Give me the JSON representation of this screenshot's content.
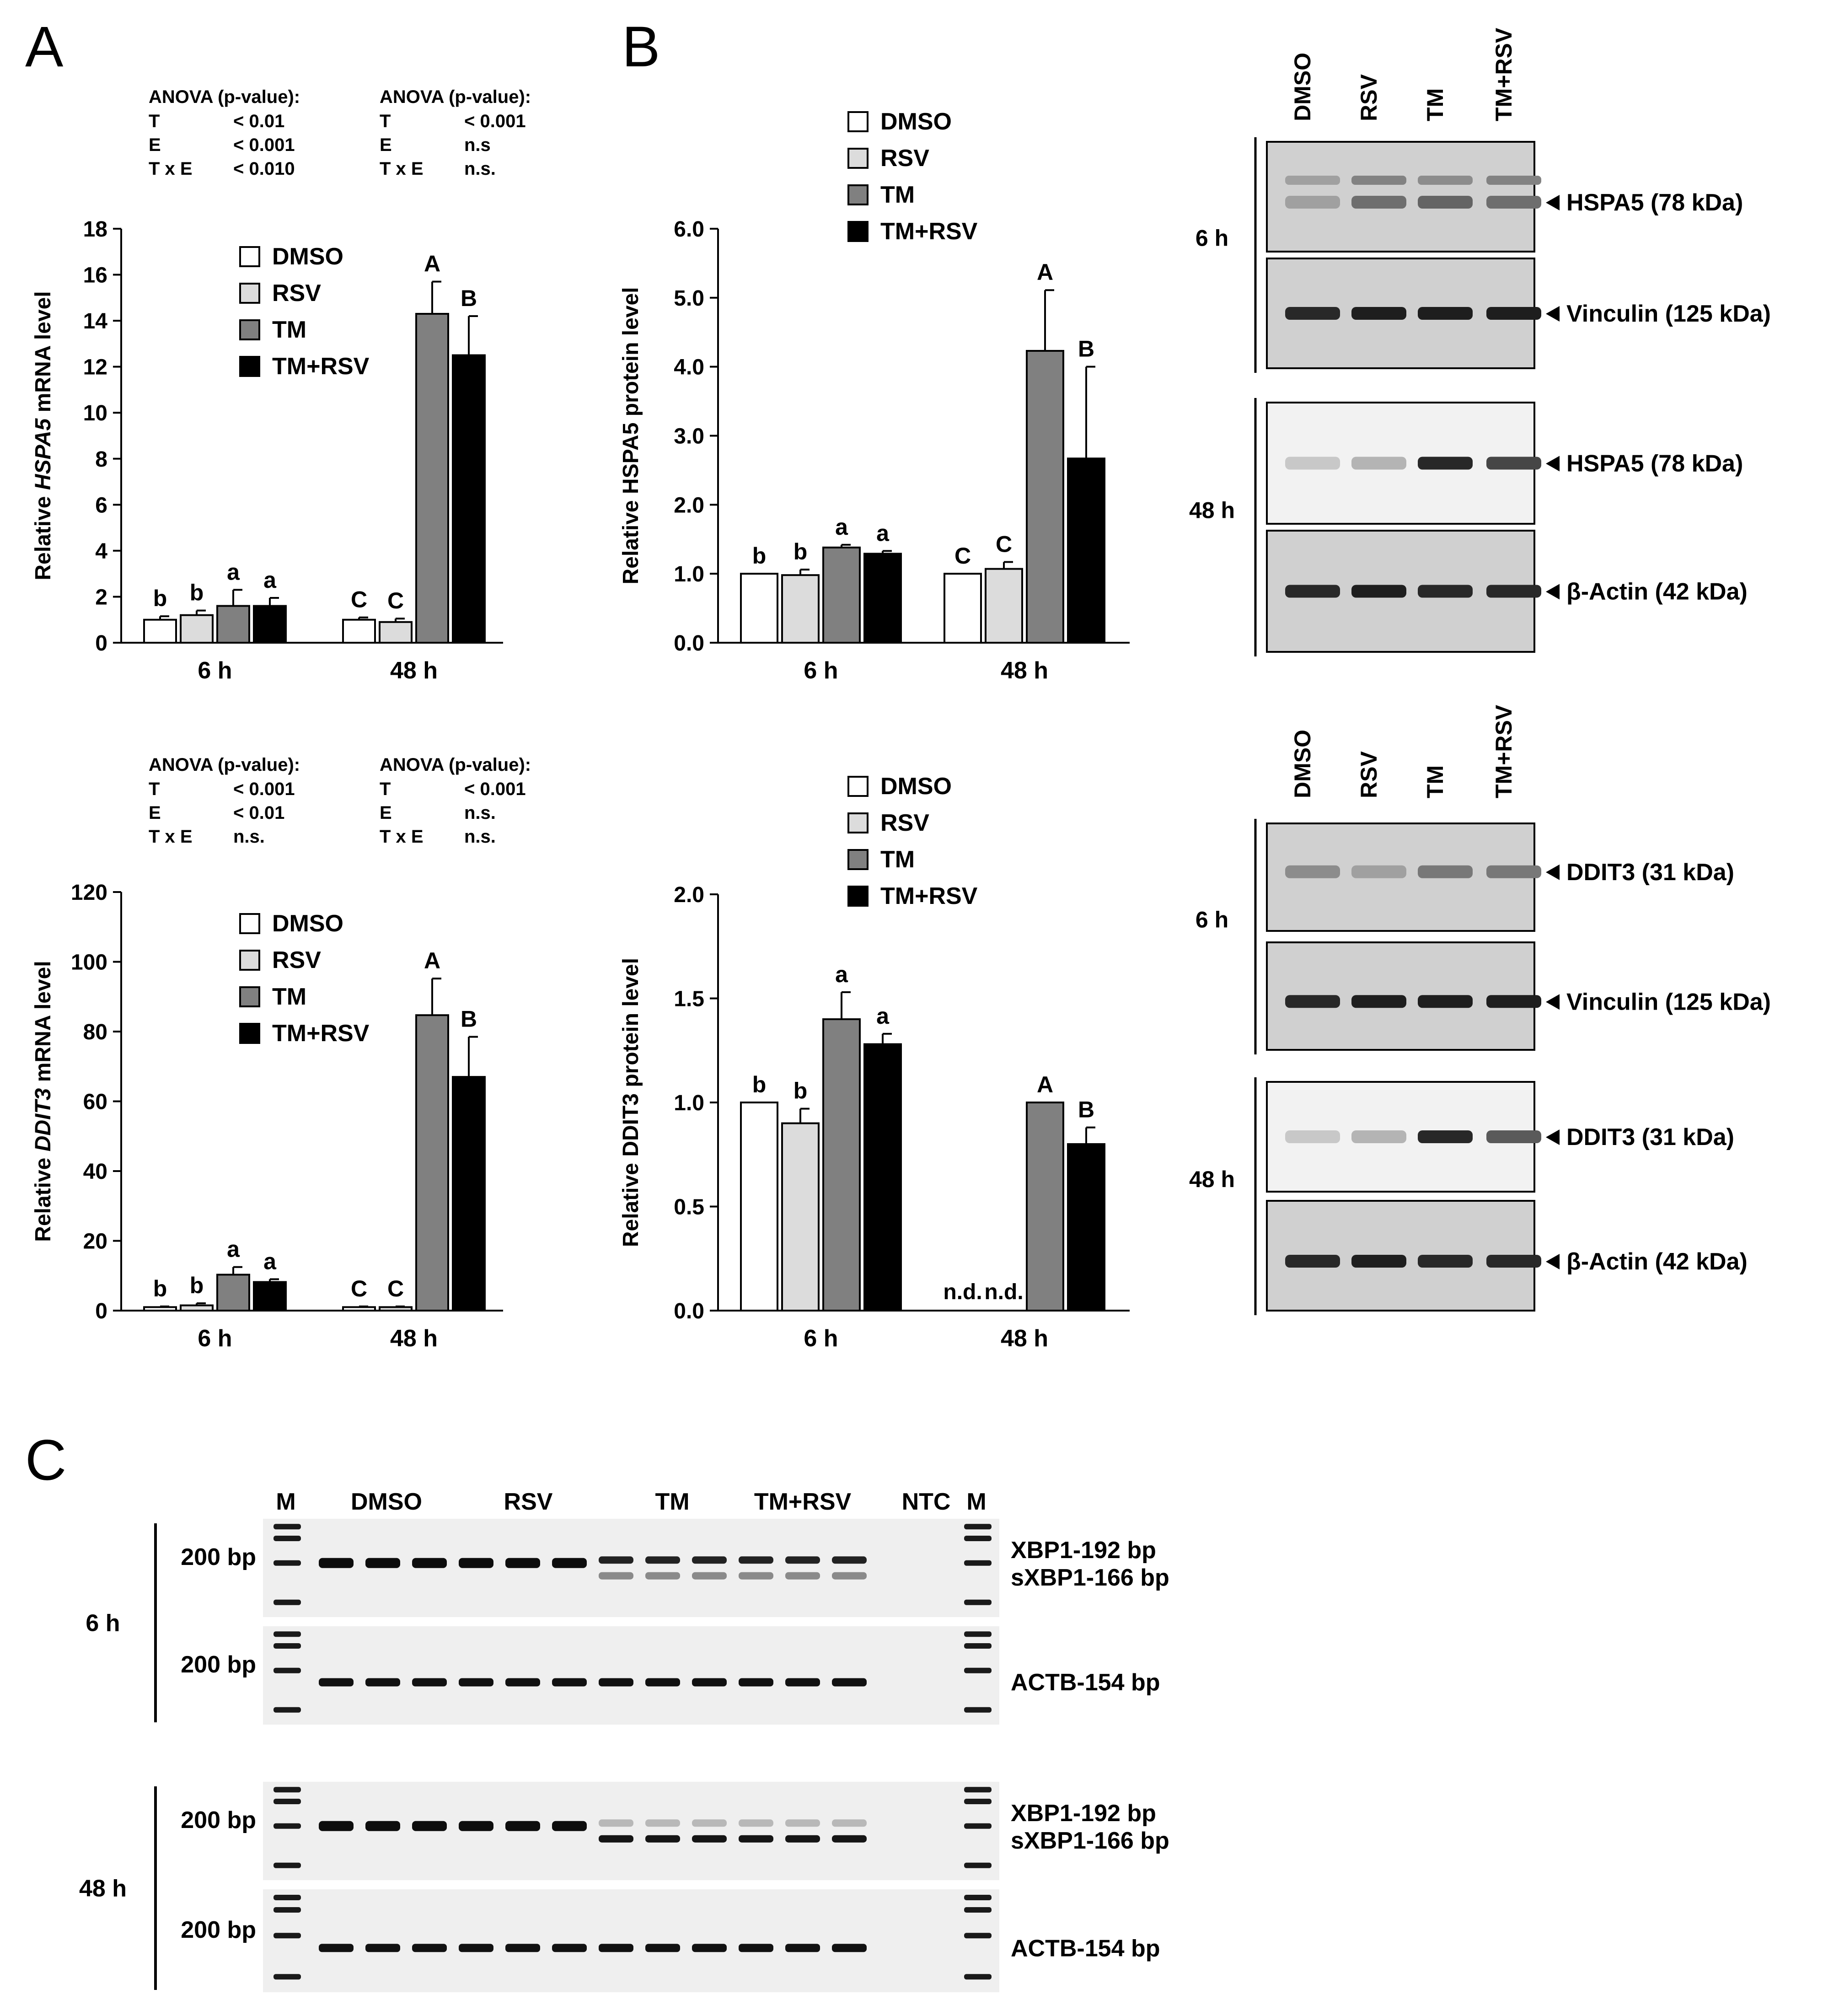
{
  "panel_letters": {
    "A": "A",
    "B": "B",
    "C": "C"
  },
  "treatments": [
    "DMSO",
    "RSV",
    "TM",
    "TM+RSV"
  ],
  "colors": {
    "DMSO": "#ffffff",
    "RSV": "#dcdcdc",
    "TM": "#808080",
    "TM+RSV": "#000000"
  },
  "anova": {
    "hspa5": {
      "left": {
        "header": "ANOVA (p-value):",
        "rows": [
          [
            "T",
            "< 0.01"
          ],
          [
            "E",
            "< 0.001"
          ],
          [
            "T x E",
            "< 0.010"
          ]
        ]
      },
      "right": {
        "header": "ANOVA (p-value):",
        "rows": [
          [
            "T",
            "< 0.001"
          ],
          [
            "E",
            "n.s"
          ],
          [
            "T x E",
            "n.s."
          ]
        ]
      }
    },
    "ddit3": {
      "left": {
        "header": "ANOVA (p-value):",
        "rows": [
          [
            "T",
            "< 0.001"
          ],
          [
            "E",
            "< 0.01"
          ],
          [
            "T x E",
            "n.s."
          ]
        ]
      },
      "right": {
        "header": "ANOVA (p-value):",
        "rows": [
          [
            "T",
            "< 0.001"
          ],
          [
            "E",
            "n.s."
          ],
          [
            "T x E",
            "n.s."
          ]
        ]
      }
    }
  },
  "chart_data": [
    {
      "id": "A_top",
      "type": "bar",
      "ylabel_prefix": "Relative ",
      "ylabel_italic": "HSPA5",
      "ylabel_suffix": " mRNA level",
      "ylim": [
        0,
        18
      ],
      "yticks": [
        "0",
        "2",
        "4",
        "6",
        "8",
        "10",
        "12",
        "14",
        "16",
        "18"
      ],
      "categories": [
        "6 h",
        "48 h"
      ],
      "series": [
        {
          "name": "DMSO",
          "values": [
            1.0,
            1.0
          ],
          "errors": [
            0.15,
            0.1
          ],
          "labels": [
            "b",
            "C"
          ]
        },
        {
          "name": "RSV",
          "values": [
            1.2,
            0.9
          ],
          "errors": [
            0.2,
            0.15
          ],
          "labels": [
            "b",
            "C"
          ]
        },
        {
          "name": "TM",
          "values": [
            1.6,
            14.3
          ],
          "errors": [
            0.7,
            1.4
          ],
          "labels": [
            "a",
            "A"
          ]
        },
        {
          "name": "TM+RSV",
          "values": [
            1.6,
            12.5
          ],
          "errors": [
            0.35,
            1.7
          ],
          "labels": [
            "a",
            "B"
          ]
        }
      ],
      "legend": "top-right"
    },
    {
      "id": "A_bottom",
      "type": "bar",
      "ylabel_prefix": "Relative ",
      "ylabel_italic": "DDIT3",
      "ylabel_suffix": " mRNA level",
      "ylim": [
        0,
        120
      ],
      "yticks": [
        "0",
        "20",
        "40",
        "60",
        "80",
        "100",
        "120"
      ],
      "categories": [
        "6 h",
        "48 h"
      ],
      "series": [
        {
          "name": "DMSO",
          "values": [
            1.0,
            1.0
          ],
          "errors": [
            0.2,
            0.2
          ],
          "labels": [
            "b",
            "C"
          ]
        },
        {
          "name": "RSV",
          "values": [
            1.5,
            1.0
          ],
          "errors": [
            0.6,
            0.2
          ],
          "labels": [
            "b",
            "C"
          ]
        },
        {
          "name": "TM",
          "values": [
            10.3,
            84.7
          ],
          "errors": [
            2.2,
            10.5
          ],
          "labels": [
            "a",
            "A"
          ]
        },
        {
          "name": "TM+RSV",
          "values": [
            8.2,
            67.0
          ],
          "errors": [
            0.8,
            11.5
          ],
          "labels": [
            "a",
            "B"
          ]
        }
      ],
      "legend": "top-right"
    },
    {
      "id": "B_top",
      "type": "bar",
      "ylabel_prefix": "Relative HSPA5 protein level",
      "ylabel_italic": "",
      "ylabel_suffix": "",
      "ylim": [
        0,
        6
      ],
      "yticks": [
        "0.0",
        "1.0",
        "2.0",
        "3.0",
        "4.0",
        "5.0",
        "6.0"
      ],
      "categories": [
        "6 h",
        "48 h"
      ],
      "series": [
        {
          "name": "DMSO",
          "values": [
            1.0,
            1.0
          ],
          "errors": [
            0,
            0
          ],
          "labels": [
            "b",
            "C"
          ]
        },
        {
          "name": "RSV",
          "values": [
            0.98,
            1.07
          ],
          "errors": [
            0.08,
            0.1
          ],
          "labels": [
            "b",
            "C"
          ]
        },
        {
          "name": "TM",
          "values": [
            1.38,
            4.23
          ],
          "errors": [
            0.04,
            0.88
          ],
          "labels": [
            "a",
            "A"
          ]
        },
        {
          "name": "TM+RSV",
          "values": [
            1.29,
            2.67
          ],
          "errors": [
            0.04,
            1.33
          ],
          "labels": [
            "a",
            "B"
          ]
        }
      ],
      "legend": "top-left"
    },
    {
      "id": "B_bottom",
      "type": "bar",
      "ylabel_prefix": "Relative DDIT3 protein level",
      "ylabel_italic": "",
      "ylabel_suffix": "",
      "ylim": [
        0,
        2
      ],
      "yticks": [
        "0.0",
        "0.5",
        "1.0",
        "1.5",
        "2.0"
      ],
      "categories": [
        "6 h",
        "48 h"
      ],
      "series": [
        {
          "name": "DMSO",
          "values": [
            1.0,
            null
          ],
          "errors": [
            0,
            0
          ],
          "labels": [
            "b",
            "n.d."
          ]
        },
        {
          "name": "RSV",
          "values": [
            0.9,
            null
          ],
          "errors": [
            0.07,
            0
          ],
          "labels": [
            "b",
            "n.d."
          ]
        },
        {
          "name": "TM",
          "values": [
            1.4,
            1.0
          ],
          "errors": [
            0.13,
            0
          ],
          "labels": [
            "a",
            "A"
          ]
        },
        {
          "name": "TM+RSV",
          "values": [
            1.28,
            0.8
          ],
          "errors": [
            0.05,
            0.08
          ],
          "labels": [
            "a",
            "B"
          ]
        }
      ],
      "legend": "top-left"
    }
  ],
  "western": {
    "lane_labels": [
      "DMSO",
      "RSV",
      "TM",
      "TM+RSV"
    ],
    "blocks": [
      {
        "time": "6 h",
        "bands": [
          {
            "label": "HSPA5",
            "kda": "(78 kDa)"
          },
          {
            "label": "Vinculin",
            "kda": "(125 kDa)"
          }
        ]
      },
      {
        "time": "48 h",
        "bands": [
          {
            "label": "HSPA5",
            "kda": "(78 kDa)"
          },
          {
            "label": "β-Actin",
            "kda": "(42 kDa)"
          }
        ]
      },
      {
        "time": "6 h",
        "bands": [
          {
            "label": "DDIT3",
            "kda": "(31 kDa)"
          },
          {
            "label": "Vinculin",
            "kda": "(125 kDa)"
          }
        ]
      },
      {
        "time": "48 h",
        "bands": [
          {
            "label": "DDIT3",
            "kda": "(31 kDa)"
          },
          {
            "label": "β-Actin",
            "kda": "(42 kDa)"
          }
        ]
      }
    ]
  },
  "gel": {
    "header": [
      "M",
      "DMSO",
      "RSV",
      "TM",
      "TM+RSV",
      "NTC",
      "M"
    ],
    "size_marker": "200 bp",
    "times": [
      "6 h",
      "48 h"
    ],
    "xbp_labels": [
      "XBP1-192 bp",
      "sXBP1-166 bp"
    ],
    "actb_label": "ACTB-154 bp"
  }
}
